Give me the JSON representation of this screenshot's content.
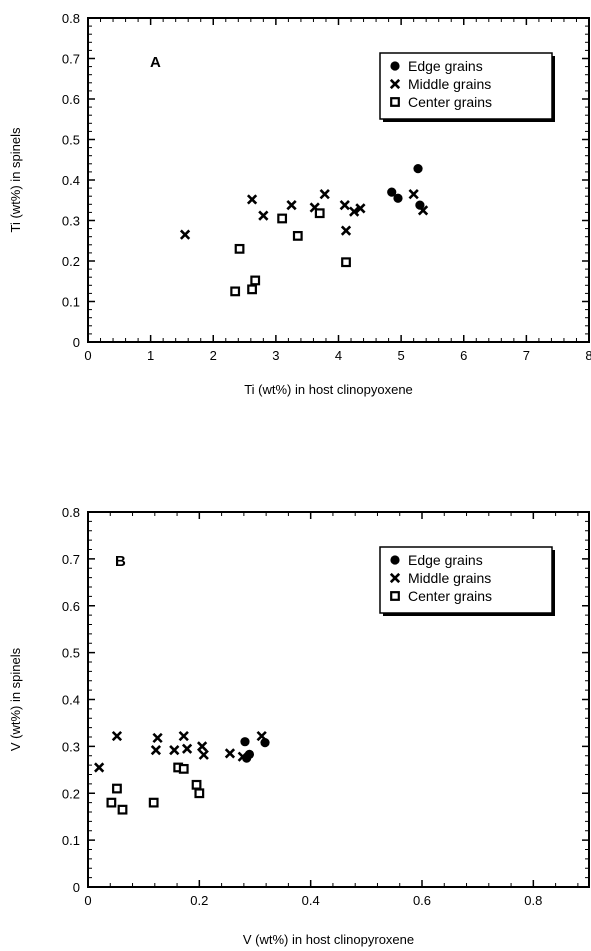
{
  "chart_data": [
    {
      "type": "scatter",
      "panel_label": "A",
      "xlabel": "Ti (wt%) in host clinopyoxene",
      "ylabel": "Ti (wt%) in spinels",
      "xlim": [
        0,
        8
      ],
      "ylim": [
        0,
        0.8
      ],
      "x_ticks": [
        "0",
        "1",
        "2",
        "3",
        "4",
        "5",
        "6",
        "7",
        "8"
      ],
      "y_ticks": [
        "0",
        "0.1",
        "0.2",
        "0.3",
        "0.4",
        "0.5",
        "0.6",
        "0.7",
        "0.8"
      ],
      "legend_position": "top-right",
      "series": [
        {
          "name": "Edge grains",
          "marker": "filled-circle",
          "points": [
            [
              4.85,
              0.37
            ],
            [
              4.95,
              0.355
            ],
            [
              5.27,
              0.428
            ],
            [
              5.3,
              0.338
            ]
          ]
        },
        {
          "name": "Middle grains",
          "marker": "x",
          "points": [
            [
              1.55,
              0.265
            ],
            [
              2.62,
              0.352
            ],
            [
              2.8,
              0.312
            ],
            [
              3.25,
              0.338
            ],
            [
              3.62,
              0.332
            ],
            [
              3.78,
              0.365
            ],
            [
              4.1,
              0.338
            ],
            [
              4.12,
              0.275
            ],
            [
              4.25,
              0.322
            ],
            [
              4.35,
              0.33
            ],
            [
              5.2,
              0.365
            ],
            [
              5.35,
              0.325
            ]
          ]
        },
        {
          "name": "Center grains",
          "marker": "open-square",
          "points": [
            [
              2.35,
              0.125
            ],
            [
              2.42,
              0.23
            ],
            [
              2.62,
              0.13
            ],
            [
              2.67,
              0.152
            ],
            [
              3.1,
              0.305
            ],
            [
              3.35,
              0.262
            ],
            [
              3.7,
              0.318
            ],
            [
              4.12,
              0.197
            ]
          ]
        }
      ]
    },
    {
      "type": "scatter",
      "panel_label": "B",
      "xlabel": "V (wt%) in host clinopyroxene",
      "ylabel": "V (wt%) in spinels",
      "xlim": [
        0,
        0.9
      ],
      "ylim": [
        0,
        0.8
      ],
      "x_ticks": [
        "0",
        "0.2",
        "0.4",
        "0.6",
        "0.8"
      ],
      "y_ticks": [
        "0",
        "0.1",
        "0.2",
        "0.3",
        "0.4",
        "0.5",
        "0.6",
        "0.7",
        "0.8"
      ],
      "legend_position": "top-right",
      "series": [
        {
          "name": "Edge grains",
          "marker": "filled-circle",
          "points": [
            [
              0.282,
              0.31
            ],
            [
              0.285,
              0.275
            ],
            [
              0.29,
              0.283
            ],
            [
              0.318,
              0.308
            ]
          ]
        },
        {
          "name": "Middle grains",
          "marker": "x",
          "points": [
            [
              0.02,
              0.255
            ],
            [
              0.052,
              0.322
            ],
            [
              0.122,
              0.292
            ],
            [
              0.125,
              0.318
            ],
            [
              0.155,
              0.292
            ],
            [
              0.172,
              0.322
            ],
            [
              0.178,
              0.295
            ],
            [
              0.205,
              0.3
            ],
            [
              0.208,
              0.282
            ],
            [
              0.255,
              0.285
            ],
            [
              0.278,
              0.278
            ],
            [
              0.312,
              0.322
            ]
          ]
        },
        {
          "name": "Center grains",
          "marker": "open-square",
          "points": [
            [
              0.042,
              0.18
            ],
            [
              0.052,
              0.21
            ],
            [
              0.062,
              0.165
            ],
            [
              0.118,
              0.18
            ],
            [
              0.162,
              0.255
            ],
            [
              0.172,
              0.252
            ],
            [
              0.195,
              0.218
            ],
            [
              0.2,
              0.2
            ]
          ]
        }
      ]
    }
  ]
}
